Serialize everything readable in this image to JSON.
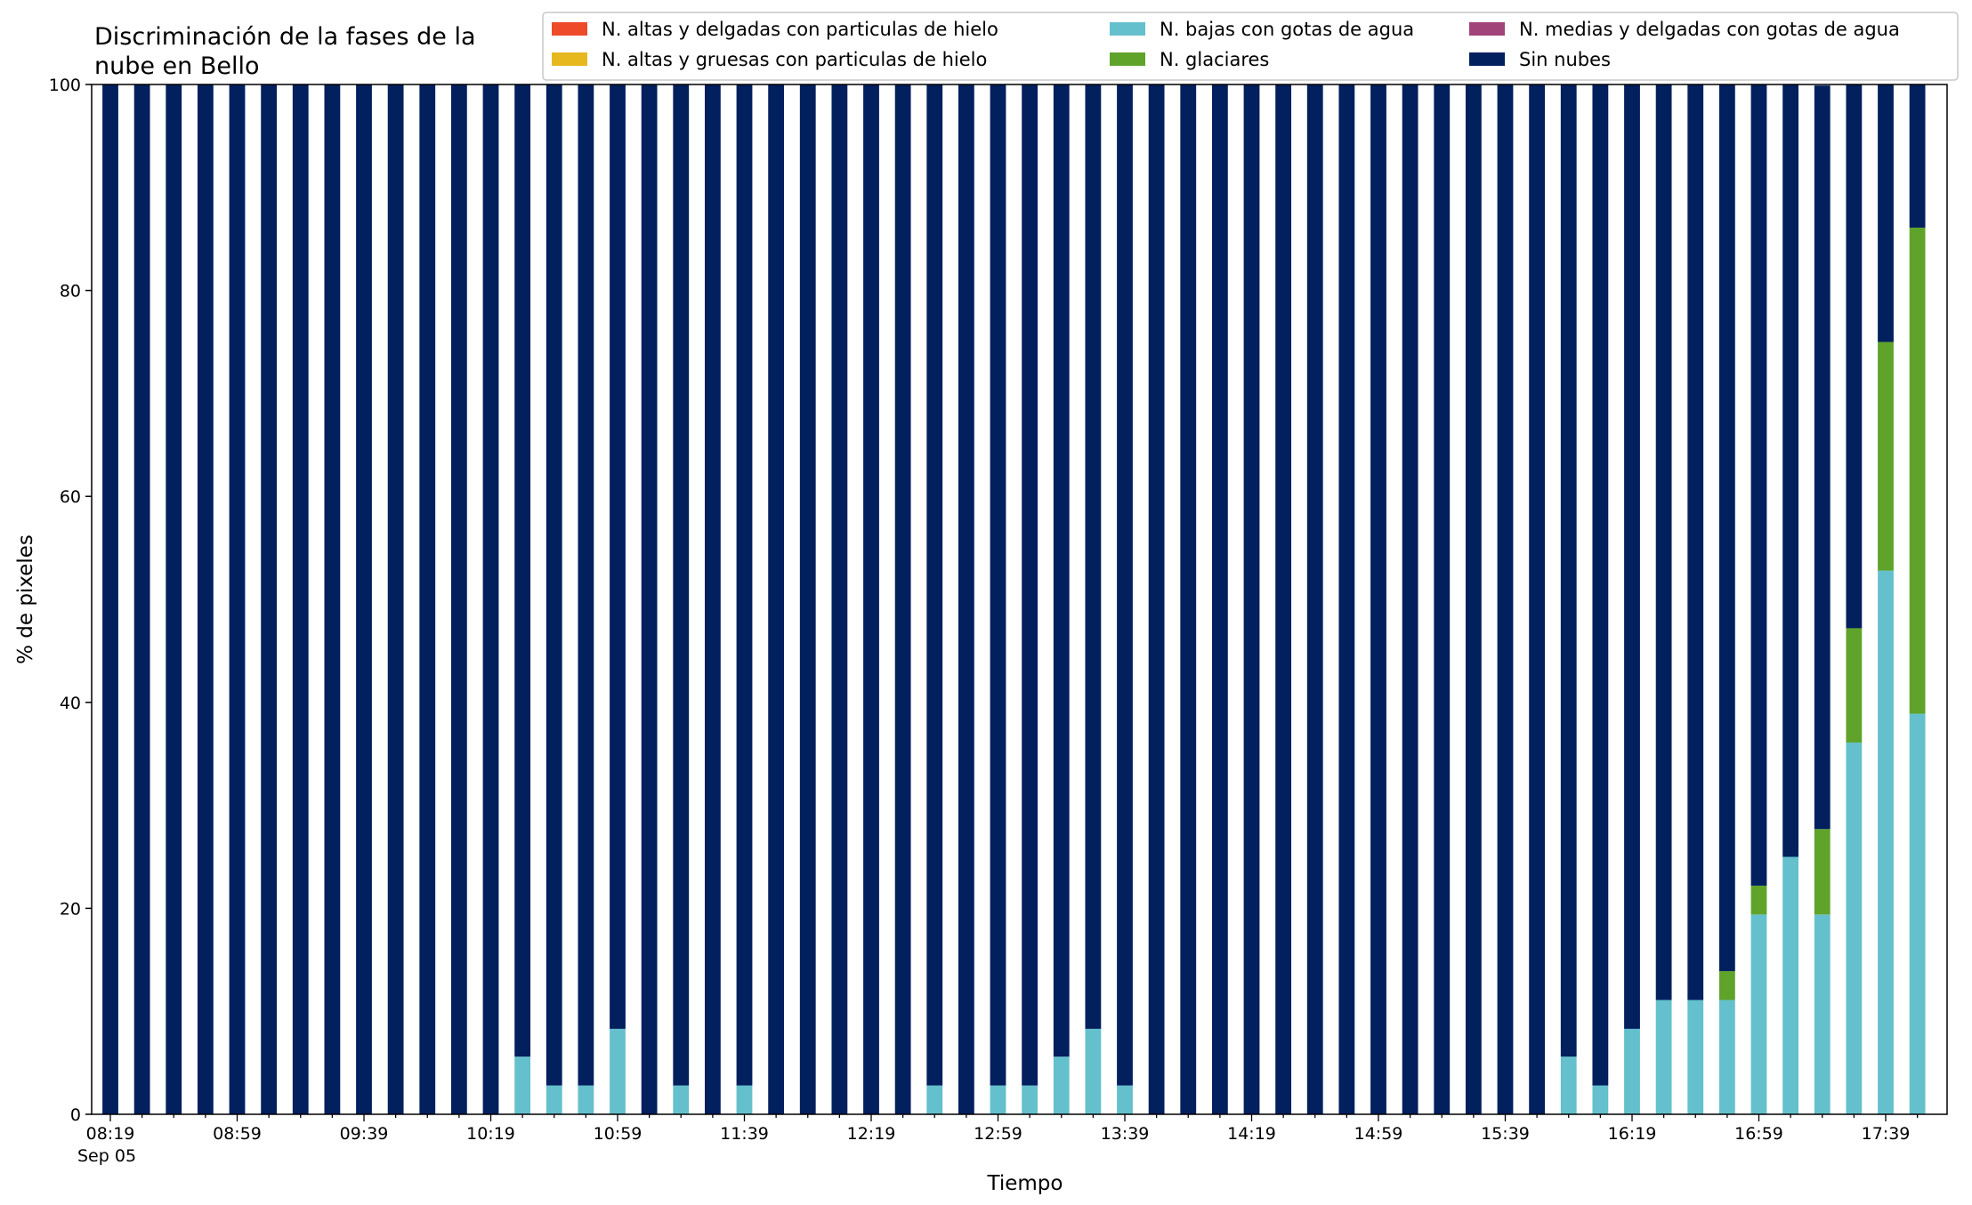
{
  "chart_data": {
    "type": "bar",
    "stacked": true,
    "title_line1": "Discriminación de la fases de la",
    "title_line2": "nube en Bello",
    "xlabel": "Tiempo",
    "ylabel": "% de pixeles",
    "ylim": [
      0,
      100
    ],
    "y_ticks": [
      "0",
      "20",
      "40",
      "60",
      "80",
      "100"
    ],
    "x_start": "08:19",
    "x_interval_minutes": 10,
    "x_tick_labels": [
      "08:19",
      "08:59",
      "09:39",
      "10:19",
      "10:59",
      "11:39",
      "12:19",
      "12:59",
      "13:39",
      "14:19",
      "14:59",
      "15:39",
      "16:19",
      "16:59",
      "17:39"
    ],
    "x_date_label": "Sep 05",
    "grid": false,
    "legend_placement": "top",
    "series": [
      {
        "name": "N. altas y delgadas con particulas de hielo",
        "color": "#ee4b2b",
        "values": []
      },
      {
        "name": "N. altas y gruesas con particulas de hielo",
        "color": "#e6b81e",
        "values": []
      },
      {
        "name": "N. bajas con gotas de agua",
        "color": "#64c0cc",
        "values": [
          0,
          0,
          0,
          0,
          0,
          0,
          0,
          0,
          0,
          0,
          0,
          0,
          0,
          5.6,
          2.8,
          2.8,
          8.3,
          0,
          2.8,
          0,
          2.8,
          0,
          0,
          0,
          0,
          0,
          2.8,
          0,
          2.8,
          2.8,
          5.6,
          8.3,
          2.8,
          0,
          0,
          0,
          0,
          0,
          0,
          0,
          0,
          0,
          0,
          0,
          0,
          0,
          5.6,
          2.8,
          8.3,
          11.1,
          11.1,
          11.1,
          19.4,
          25.0,
          19.4,
          36.1,
          52.8,
          38.9
        ]
      },
      {
        "name": "N. glaciares",
        "color": "#5fa32b",
        "values": [
          0,
          0,
          0,
          0,
          0,
          0,
          0,
          0,
          0,
          0,
          0,
          0,
          0,
          0,
          0,
          0,
          0,
          0,
          0,
          0,
          0,
          0,
          0,
          0,
          0,
          0,
          0,
          0,
          0,
          0,
          0,
          0,
          0,
          0,
          0,
          0,
          0,
          0,
          0,
          0,
          0,
          0,
          0,
          0,
          0,
          0,
          0,
          0,
          0,
          0,
          0,
          2.8,
          2.8,
          0,
          8.3,
          11.1,
          22.2,
          47.2
        ]
      },
      {
        "name": "N. medias y delgadas con gotas de agua",
        "color": "#a0447a",
        "values": []
      },
      {
        "name": "Sin nubes",
        "color": "#021f5e",
        "values": [
          100,
          100,
          100,
          100,
          100,
          100,
          100,
          100,
          100,
          100,
          100,
          100,
          100,
          94.4,
          97.2,
          97.2,
          91.7,
          100,
          97.2,
          100,
          97.2,
          100,
          100,
          100,
          100,
          100,
          97.2,
          100,
          97.2,
          97.2,
          94.4,
          91.7,
          97.2,
          100,
          100,
          100,
          100,
          100,
          100,
          100,
          100,
          100,
          100,
          100,
          100,
          100,
          94.4,
          97.2,
          91.7,
          88.9,
          88.9,
          86.1,
          77.8,
          75.0,
          72.2,
          52.8,
          25.0,
          13.9
        ]
      }
    ]
  }
}
